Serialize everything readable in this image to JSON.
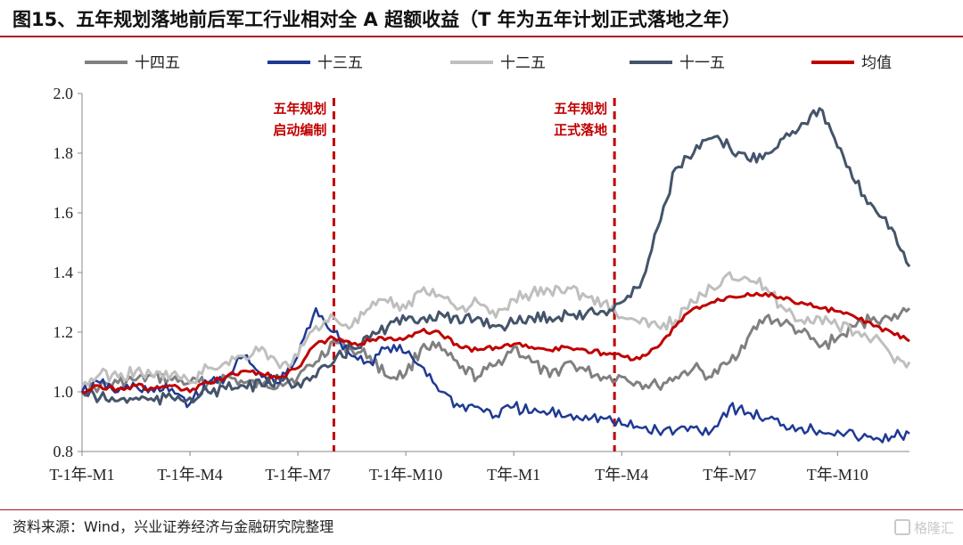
{
  "header": {
    "title": "图15、五年规划落地前后军工行业相对全 A 超额收益（T 年为五年计划正式落地之年）"
  },
  "footer": {
    "source": "资料来源：Wind，兴业证券经济与金融研究院整理",
    "watermark": "格隆汇"
  },
  "chart_data": {
    "type": "line",
    "legend_position": "top",
    "grid": false,
    "ylim": [
      0.8,
      2.0
    ],
    "yticks": [
      "0.8",
      "1.0",
      "1.2",
      "1.4",
      "1.6",
      "1.8",
      "2.0"
    ],
    "x_range": [
      0,
      23
    ],
    "x_ticks": [
      {
        "label": "T-1年-M1",
        "x": 0
      },
      {
        "label": "T-1年-M4",
        "x": 3
      },
      {
        "label": "T-1年-M7",
        "x": 6
      },
      {
        "label": "T-1年-M10",
        "x": 9
      },
      {
        "label": "T年-M1",
        "x": 12
      },
      {
        "label": "T年-M4",
        "x": 15
      },
      {
        "label": "T年-M7",
        "x": 18
      },
      {
        "label": "T年-M10",
        "x": 21
      }
    ],
    "annotations": [
      {
        "text": [
          "五年规划",
          "启动编制"
        ],
        "x": 7.0
      },
      {
        "text": [
          "五年规划",
          "正式落地"
        ],
        "x": 14.8
      }
    ],
    "series": [
      {
        "name": "十四五",
        "color": "#808080",
        "width": 3,
        "x": [
          0,
          0.5,
          1,
          1.5,
          2,
          2.5,
          3,
          3.5,
          4,
          4.5,
          5,
          5.5,
          6,
          6.5,
          7,
          7.5,
          8,
          8.5,
          9,
          9.5,
          10,
          10.5,
          11,
          11.5,
          12,
          12.5,
          13,
          13.5,
          14,
          14.5,
          15,
          15.5,
          16,
          16.5,
          17,
          17.5,
          18,
          18.5,
          19,
          19.5,
          20,
          20.5,
          21,
          21.5,
          22,
          22.5,
          23
        ],
        "values": [
          1.0,
          1.02,
          1.03,
          1.04,
          1.05,
          1.04,
          1.03,
          1.03,
          1.05,
          1.03,
          1.02,
          1.03,
          1.05,
          1.1,
          1.17,
          1.14,
          1.12,
          1.05,
          1.06,
          1.16,
          1.14,
          1.08,
          1.05,
          1.09,
          1.15,
          1.1,
          1.05,
          1.1,
          1.07,
          1.05,
          1.05,
          1.03,
          1.02,
          1.05,
          1.08,
          1.05,
          1.1,
          1.18,
          1.25,
          1.23,
          1.2,
          1.15,
          1.18,
          1.22,
          1.25,
          1.24,
          1.28
        ]
      },
      {
        "name": "十三五",
        "color": "#1f3a93",
        "width": 2.5,
        "x": [
          0,
          0.5,
          1,
          1.5,
          2,
          2.5,
          3,
          3.5,
          4,
          4.5,
          5,
          5.5,
          6,
          6.5,
          7,
          7.5,
          8,
          8.5,
          9,
          9.5,
          10,
          10.5,
          11,
          11.5,
          12,
          12.5,
          13,
          13.5,
          14,
          14.5,
          15,
          15.5,
          16,
          16.5,
          17,
          17.5,
          18,
          18.5,
          19,
          19.5,
          20,
          20.5,
          21,
          21.5,
          22,
          22.5,
          23
        ],
        "values": [
          1.0,
          1.03,
          1.0,
          1.02,
          1.0,
          1.01,
          0.96,
          1.03,
          1.05,
          1.12,
          1.05,
          1.03,
          1.12,
          1.28,
          1.2,
          1.12,
          1.1,
          1.15,
          1.13,
          1.08,
          1.0,
          0.95,
          0.95,
          0.92,
          0.95,
          0.93,
          0.93,
          0.92,
          0.92,
          0.91,
          0.89,
          0.88,
          0.87,
          0.87,
          0.88,
          0.87,
          0.95,
          0.93,
          0.91,
          0.89,
          0.88,
          0.87,
          0.87,
          0.85,
          0.84,
          0.85,
          0.86
        ]
      },
      {
        "name": "十二五",
        "color": "#bfbfbf",
        "width": 3,
        "x": [
          0,
          0.5,
          1,
          1.5,
          2,
          2.5,
          3,
          3.5,
          4,
          4.5,
          5,
          5.5,
          6,
          6.5,
          7,
          7.5,
          8,
          8.5,
          9,
          9.5,
          10,
          10.5,
          11,
          11.5,
          12,
          12.5,
          13,
          13.5,
          14,
          14.5,
          15,
          15.5,
          16,
          16.5,
          17,
          17.5,
          18,
          18.5,
          19,
          19.5,
          20,
          20.5,
          21,
          21.5,
          22,
          22.5,
          23
        ],
        "values": [
          1.02,
          1.06,
          1.05,
          1.07,
          1.05,
          1.06,
          1.03,
          1.08,
          1.1,
          1.12,
          1.15,
          1.08,
          1.12,
          1.22,
          1.25,
          1.22,
          1.28,
          1.3,
          1.28,
          1.35,
          1.32,
          1.28,
          1.3,
          1.25,
          1.31,
          1.33,
          1.34,
          1.35,
          1.32,
          1.3,
          1.25,
          1.23,
          1.22,
          1.24,
          1.3,
          1.35,
          1.4,
          1.38,
          1.35,
          1.28,
          1.24,
          1.25,
          1.22,
          1.2,
          1.18,
          1.12,
          1.1
        ]
      },
      {
        "name": "十一五",
        "color": "#44546a",
        "width": 3,
        "x": [
          0,
          0.5,
          1,
          1.5,
          2,
          2.5,
          3,
          3.5,
          4,
          4.5,
          5,
          5.5,
          6,
          6.5,
          7,
          7.5,
          8,
          8.5,
          9,
          9.5,
          10,
          10.5,
          11,
          11.5,
          12,
          12.5,
          13,
          13.5,
          14,
          14.5,
          15,
          15.5,
          16,
          16.5,
          17,
          17.5,
          18,
          18.5,
          19,
          19.5,
          20,
          20.5,
          21,
          21.5,
          22,
          22.5,
          23
        ],
        "values": [
          1.0,
          0.98,
          0.97,
          0.98,
          0.97,
          0.98,
          0.98,
          1.0,
          1.01,
          1.02,
          1.02,
          1.04,
          1.03,
          1.05,
          1.1,
          1.15,
          1.18,
          1.22,
          1.24,
          1.25,
          1.26,
          1.23,
          1.25,
          1.22,
          1.23,
          1.25,
          1.25,
          1.26,
          1.26,
          1.27,
          1.3,
          1.35,
          1.55,
          1.75,
          1.8,
          1.85,
          1.82,
          1.78,
          1.8,
          1.85,
          1.9,
          1.95,
          1.82,
          1.7,
          1.62,
          1.55,
          1.42
        ]
      },
      {
        "name": "均值",
        "color": "#c00000",
        "width": 3,
        "x": [
          0,
          0.5,
          1,
          1.5,
          2,
          2.5,
          3,
          3.5,
          4,
          4.5,
          5,
          5.5,
          6,
          6.5,
          7,
          7.5,
          8,
          8.5,
          9,
          9.5,
          10,
          10.5,
          11,
          11.5,
          12,
          12.5,
          13,
          13.5,
          14,
          14.5,
          15,
          15.5,
          16,
          16.5,
          17,
          17.5,
          18,
          18.5,
          19,
          19.5,
          20,
          20.5,
          21,
          21.5,
          22,
          22.5,
          23
        ],
        "values": [
          1.0,
          1.02,
          1.01,
          1.02,
          1.01,
          1.02,
          1.0,
          1.03,
          1.05,
          1.07,
          1.06,
          1.05,
          1.08,
          1.16,
          1.18,
          1.16,
          1.17,
          1.18,
          1.18,
          1.21,
          1.19,
          1.15,
          1.14,
          1.15,
          1.16,
          1.15,
          1.14,
          1.15,
          1.14,
          1.13,
          1.12,
          1.11,
          1.15,
          1.22,
          1.28,
          1.3,
          1.32,
          1.33,
          1.33,
          1.31,
          1.3,
          1.28,
          1.27,
          1.25,
          1.22,
          1.2,
          1.17
        ]
      }
    ]
  }
}
